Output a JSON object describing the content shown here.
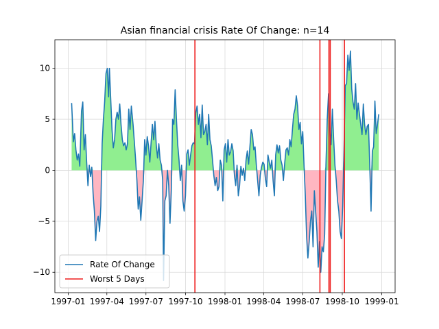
{
  "chart_data": {
    "type": "line",
    "title": "Asian financial crisis Rate Of Change: n=14",
    "xlabel": "",
    "ylabel": "",
    "x_range": [
      "1997-01-01",
      "1999-01-01"
    ],
    "xlim": [
      "1996-12-01",
      "1999-02-01"
    ],
    "ylim": [
      -12,
      12.8
    ],
    "yticks": [
      -10,
      -5,
      0,
      5,
      10
    ],
    "ytick_labels": [
      "−10",
      "−5",
      "0",
      "5",
      "10"
    ],
    "xticks": [
      "1997-01-01",
      "1997-04-01",
      "1997-07-01",
      "1997-10-01",
      "1998-01-01",
      "1998-04-01",
      "1998-07-01",
      "1998-10-01",
      "1999-01-01"
    ],
    "xtick_labels": [
      "1997-01",
      "1997-04",
      "1997-07",
      "1997-10",
      "1998-01",
      "1998-04",
      "1998-07",
      "1998-10",
      "1999-01"
    ],
    "grid": true,
    "legend": {
      "location": "lower-left",
      "entries": [
        "Rate Of Change",
        "Worst 5 Days"
      ]
    },
    "colors": {
      "line": "#1f77b4",
      "worst": "#ee1c1c",
      "positive_fill": "#90ee90",
      "negative_fill": "#ffb6c1",
      "grid": "#d9d9d9"
    },
    "series": [
      {
        "name": "Rate Of Change",
        "points": [
          [
            "1997-01-09",
            6.6
          ],
          [
            "1997-01-13",
            2.8
          ],
          [
            "1997-01-16",
            3.6
          ],
          [
            "1997-01-19",
            2.0
          ],
          [
            "1997-01-22",
            1.0
          ],
          [
            "1997-01-25",
            1.6
          ],
          [
            "1997-01-28",
            0.4
          ],
          [
            "1997-02-01",
            5.8
          ],
          [
            "1997-02-04",
            6.7
          ],
          [
            "1997-02-07",
            2.0
          ],
          [
            "1997-02-10",
            3.5
          ],
          [
            "1997-02-13",
            0.8
          ],
          [
            "1997-02-16",
            -1.5
          ],
          [
            "1997-02-19",
            0.5
          ],
          [
            "1997-02-22",
            -0.6
          ],
          [
            "1997-02-25",
            0.3
          ],
          [
            "1997-02-28",
            -2.3
          ],
          [
            "1997-03-03",
            -4.0
          ],
          [
            "1997-03-06",
            -6.9
          ],
          [
            "1997-03-09",
            -5.0
          ],
          [
            "1997-03-12",
            -4.5
          ],
          [
            "1997-03-15",
            -6.0
          ],
          [
            "1997-03-18",
            -3.5
          ],
          [
            "1997-03-21",
            2.6
          ],
          [
            "1997-03-24",
            5.0
          ],
          [
            "1997-03-27",
            6.8
          ],
          [
            "1997-03-30",
            9.5
          ],
          [
            "1997-04-02",
            10.0
          ],
          [
            "1997-04-05",
            7.2
          ],
          [
            "1997-04-07",
            10.0
          ],
          [
            "1997-04-10",
            7.0
          ],
          [
            "1997-04-13",
            4.0
          ],
          [
            "1997-04-16",
            2.2
          ],
          [
            "1997-04-19",
            3.0
          ],
          [
            "1997-04-22",
            5.0
          ],
          [
            "1997-04-25",
            5.7
          ],
          [
            "1997-04-28",
            5.0
          ],
          [
            "1997-05-01",
            6.5
          ],
          [
            "1997-05-04",
            4.5
          ],
          [
            "1997-05-07",
            3.0
          ],
          [
            "1997-05-10",
            2.4
          ],
          [
            "1997-05-13",
            2.7
          ],
          [
            "1997-05-16",
            2.0
          ],
          [
            "1997-05-19",
            2.6
          ],
          [
            "1997-05-22",
            6.0
          ],
          [
            "1997-05-25",
            4.0
          ],
          [
            "1997-05-28",
            6.3
          ],
          [
            "1997-06-01",
            4.5
          ],
          [
            "1997-06-04",
            2.8
          ],
          [
            "1997-06-07",
            1.0
          ],
          [
            "1997-06-10",
            -1.0
          ],
          [
            "1997-06-13",
            -3.8
          ],
          [
            "1997-06-16",
            -2.6
          ],
          [
            "1997-06-19",
            -4.9
          ],
          [
            "1997-06-22",
            -3.0
          ],
          [
            "1997-06-25",
            -1.0
          ],
          [
            "1997-06-28",
            3.0
          ],
          [
            "1997-07-01",
            1.5
          ],
          [
            "1997-07-04",
            3.3
          ],
          [
            "1997-07-07",
            2.4
          ],
          [
            "1997-07-10",
            0.8
          ],
          [
            "1997-07-13",
            2.7
          ],
          [
            "1997-07-16",
            4.5
          ],
          [
            "1997-07-19",
            3.0
          ],
          [
            "1997-07-22",
            4.8
          ],
          [
            "1997-07-25",
            2.5
          ],
          [
            "1997-07-28",
            1.2
          ],
          [
            "1997-07-31",
            2.6
          ],
          [
            "1997-08-03",
            1.0
          ],
          [
            "1997-08-06",
            0.5
          ],
          [
            "1997-08-09",
            -1.0
          ],
          [
            "1997-08-11",
            -10.8
          ],
          [
            "1997-08-14",
            -3.0
          ],
          [
            "1997-08-17",
            -2.5
          ],
          [
            "1997-08-20",
            0.0
          ],
          [
            "1997-08-23",
            -1.5
          ],
          [
            "1997-08-26",
            -5.2
          ],
          [
            "1997-08-29",
            -2.0
          ],
          [
            "1997-09-01",
            5.0
          ],
          [
            "1997-09-04",
            4.5
          ],
          [
            "1997-09-07",
            7.9
          ],
          [
            "1997-09-10",
            5.0
          ],
          [
            "1997-09-13",
            2.5
          ],
          [
            "1997-09-16",
            1.0
          ],
          [
            "1997-09-19",
            -1.0
          ],
          [
            "1997-09-22",
            0.5
          ],
          [
            "1997-09-25",
            -3.0
          ],
          [
            "1997-09-28",
            -4.0
          ],
          [
            "1997-10-01",
            -2.5
          ],
          [
            "1997-10-04",
            1.6
          ],
          [
            "1997-10-07",
            2.0
          ],
          [
            "1997-10-10",
            0.5
          ],
          [
            "1997-10-13",
            1.5
          ],
          [
            "1997-10-16",
            2.4
          ],
          [
            "1997-10-19",
            2.7
          ],
          [
            "1997-10-22",
            2.6
          ],
          [
            "1997-10-25",
            5.6
          ],
          [
            "1997-10-28",
            6.3
          ],
          [
            "1997-10-31",
            4.5
          ],
          [
            "1997-11-03",
            5.5
          ],
          [
            "1997-11-06",
            3.2
          ],
          [
            "1997-11-09",
            6.4
          ],
          [
            "1997-11-12",
            3.5
          ],
          [
            "1997-11-15",
            3.8
          ],
          [
            "1997-11-18",
            4.5
          ],
          [
            "1997-11-21",
            2.5
          ],
          [
            "1997-11-24",
            5.5
          ],
          [
            "1997-11-27",
            3.0
          ],
          [
            "1997-11-30",
            2.4
          ],
          [
            "1997-12-03",
            1.0
          ],
          [
            "1997-12-06",
            -0.5
          ],
          [
            "1997-12-09",
            -1.5
          ],
          [
            "1997-12-12",
            -0.7
          ],
          [
            "1997-12-15",
            -2.0
          ],
          [
            "1997-12-18",
            -1.6
          ],
          [
            "1997-12-21",
            1.0
          ],
          [
            "1997-12-24",
            0.5
          ],
          [
            "1997-12-27",
            -3.0
          ],
          [
            "1997-12-30",
            2.0
          ],
          [
            "1998-01-02",
            2.6
          ],
          [
            "1998-01-05",
            0.8
          ],
          [
            "1998-01-08",
            3.0
          ],
          [
            "1998-01-11",
            1.5
          ],
          [
            "1998-01-14",
            1.8
          ],
          [
            "1998-01-17",
            2.6
          ],
          [
            "1998-01-20",
            1.9
          ],
          [
            "1998-01-23",
            -0.5
          ],
          [
            "1998-01-26",
            -1.5
          ],
          [
            "1998-01-29",
            0.5
          ],
          [
            "1998-02-01",
            -2.5
          ],
          [
            "1998-02-04",
            -1.5
          ],
          [
            "1998-02-07",
            0.4
          ],
          [
            "1998-02-10",
            -0.5
          ],
          [
            "1998-02-13",
            0.2
          ],
          [
            "1998-02-16",
            -1.0
          ],
          [
            "1998-02-19",
            1.0
          ],
          [
            "1998-02-22",
            1.9
          ],
          [
            "1998-02-25",
            0.6
          ],
          [
            "1998-02-28",
            2.3
          ],
          [
            "1998-03-03",
            4.0
          ],
          [
            "1998-03-06",
            3.5
          ],
          [
            "1998-03-09",
            2.0
          ],
          [
            "1998-03-12",
            2.3
          ],
          [
            "1998-03-15",
            0.5
          ],
          [
            "1998-03-18",
            -1.0
          ],
          [
            "1998-03-21",
            -2.5
          ],
          [
            "1998-03-24",
            -0.5
          ],
          [
            "1998-03-27",
            0.3
          ],
          [
            "1998-03-30",
            0.8
          ],
          [
            "1998-04-02",
            0.6
          ],
          [
            "1998-04-05",
            -0.8
          ],
          [
            "1998-04-08",
            -1.6
          ],
          [
            "1998-04-11",
            1.5
          ],
          [
            "1998-04-14",
            0.8
          ],
          [
            "1998-04-17",
            0.2
          ],
          [
            "1998-04-20",
            1.0
          ],
          [
            "1998-04-23",
            -1.0
          ],
          [
            "1998-04-26",
            -2.5
          ],
          [
            "1998-04-29",
            1.5
          ],
          [
            "1998-05-02",
            2.5
          ],
          [
            "1998-05-05",
            1.7
          ],
          [
            "1998-05-08",
            2.4
          ],
          [
            "1998-05-11",
            1.0
          ],
          [
            "1998-05-14",
            0.5
          ],
          [
            "1998-05-17",
            -1.0
          ],
          [
            "1998-05-20",
            0.7
          ],
          [
            "1998-05-23",
            2.0
          ],
          [
            "1998-05-26",
            2.2
          ],
          [
            "1998-05-29",
            1.5
          ],
          [
            "1998-06-01",
            3.0
          ],
          [
            "1998-06-04",
            2.3
          ],
          [
            "1998-06-07",
            4.0
          ],
          [
            "1998-06-10",
            5.5
          ],
          [
            "1998-06-13",
            6.0
          ],
          [
            "1998-06-16",
            7.3
          ],
          [
            "1998-06-19",
            6.3
          ],
          [
            "1998-06-22",
            4.0
          ],
          [
            "1998-06-25",
            4.7
          ],
          [
            "1998-06-28",
            2.6
          ],
          [
            "1998-07-01",
            3.8
          ],
          [
            "1998-07-04",
            0.5
          ],
          [
            "1998-07-07",
            -2.5
          ],
          [
            "1998-07-10",
            -6.5
          ],
          [
            "1998-07-13",
            -8.6
          ],
          [
            "1998-07-16",
            -7.0
          ],
          [
            "1998-07-19",
            -5.0
          ],
          [
            "1998-07-22",
            -4.0
          ],
          [
            "1998-07-25",
            -7.5
          ],
          [
            "1998-07-28",
            -2.0
          ],
          [
            "1998-07-31",
            -4.0
          ],
          [
            "1998-08-03",
            -6.0
          ],
          [
            "1998-08-06",
            -9.5
          ],
          [
            "1998-08-09",
            -7.0
          ],
          [
            "1998-08-12",
            -10.0
          ],
          [
            "1998-08-15",
            -7.5
          ],
          [
            "1998-08-18",
            -8.0
          ],
          [
            "1998-08-21",
            -6.3
          ],
          [
            "1998-08-24",
            0.5
          ],
          [
            "1998-08-27",
            5.0
          ],
          [
            "1998-08-30",
            7.5
          ],
          [
            "1998-09-02",
            4.0
          ],
          [
            "1998-09-05",
            2.5
          ],
          [
            "1998-09-08",
            6.0
          ],
          [
            "1998-09-11",
            3.0
          ],
          [
            "1998-09-14",
            0.5
          ],
          [
            "1998-09-17",
            -1.0
          ],
          [
            "1998-09-20",
            -3.0
          ],
          [
            "1998-09-23",
            -4.0
          ],
          [
            "1998-09-26",
            -6.0
          ],
          [
            "1998-09-29",
            -6.7
          ],
          [
            "1998-10-02",
            -3.5
          ],
          [
            "1998-10-05",
            2.0
          ],
          [
            "1998-10-08",
            8.3
          ],
          [
            "1998-10-11",
            8.5
          ],
          [
            "1998-10-14",
            11.3
          ],
          [
            "1998-10-17",
            9.8
          ],
          [
            "1998-10-20",
            11.7
          ],
          [
            "1998-10-23",
            8.0
          ],
          [
            "1998-10-26",
            6.7
          ],
          [
            "1998-10-29",
            6.0
          ],
          [
            "1998-11-01",
            8.5
          ],
          [
            "1998-11-04",
            5.0
          ],
          [
            "1998-11-07",
            6.6
          ],
          [
            "1998-11-10",
            5.5
          ],
          [
            "1998-11-13",
            4.5
          ],
          [
            "1998-11-16",
            3.5
          ],
          [
            "1998-11-19",
            6.5
          ],
          [
            "1998-11-22",
            4.5
          ],
          [
            "1998-11-25",
            3.5
          ],
          [
            "1998-11-28",
            4.3
          ],
          [
            "1998-12-01",
            4.5
          ],
          [
            "1998-12-04",
            0.5
          ],
          [
            "1998-12-07",
            -4.0
          ],
          [
            "1998-12-10",
            1.9
          ],
          [
            "1998-12-13",
            2.3
          ],
          [
            "1998-12-16",
            6.8
          ],
          [
            "1998-12-19",
            3.6
          ],
          [
            "1998-12-22",
            4.5
          ],
          [
            "1998-12-25",
            5.5
          ]
        ]
      }
    ],
    "worst_days": [
      "1997-10-23",
      "1998-08-10",
      "1998-08-31",
      "1998-09-03",
      "1998-10-06"
    ]
  }
}
